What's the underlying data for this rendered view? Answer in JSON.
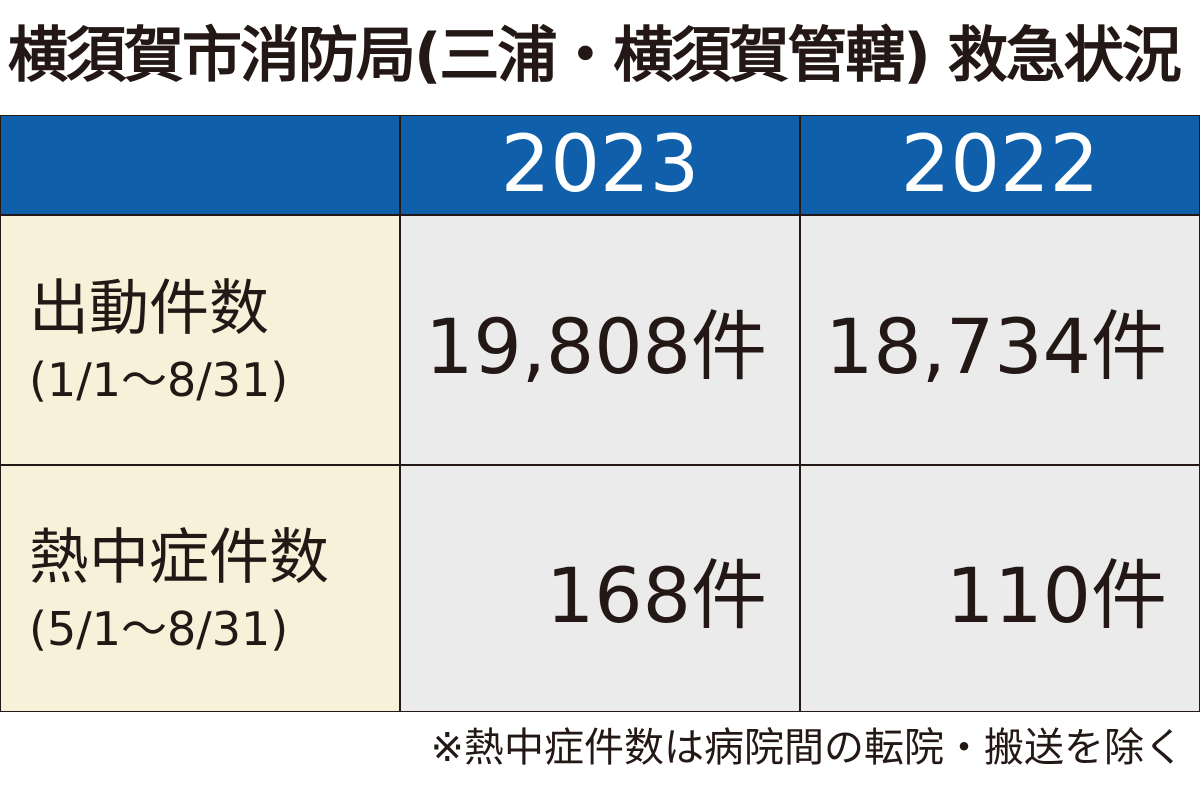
{
  "header": {
    "title": "横須賀市消防局(三浦・横須賀管轄) 救急状況"
  },
  "table": {
    "columns": [
      "2023",
      "2022"
    ],
    "rows": [
      {
        "label": "出動件数",
        "period": "(1/1〜8/31)",
        "values": [
          "19,808件",
          "18,734件"
        ]
      },
      {
        "label": "熱中症件数",
        "period": "(5/1〜8/31)",
        "values": [
          "168件",
          "110件"
        ]
      }
    ]
  },
  "note": "※熱中症件数は病院間の転院・搬送を除く"
}
